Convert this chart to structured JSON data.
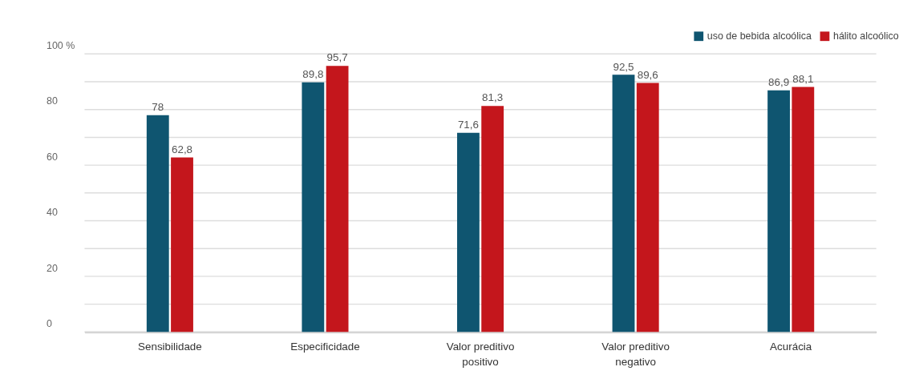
{
  "chart_data": {
    "type": "bar",
    "categories": [
      "Sensibilidade",
      "Especificidade",
      "Valor preditivo positivo",
      "Valor preditivo negativo",
      "Acurácia"
    ],
    "series": [
      {
        "name": "uso de bebida alcoólica",
        "color": "#0f5570",
        "values": [
          78,
          89.8,
          71.6,
          92.5,
          86.9
        ],
        "value_labels": [
          "78",
          "89,8",
          "71,6",
          "92,5",
          "86,9"
        ]
      },
      {
        "name": "hálito alcoólico",
        "color": "#c4161c",
        "values": [
          62.8,
          95.7,
          81.3,
          89.6,
          88.1
        ],
        "value_labels": [
          "62,8",
          "95,7",
          "81,3",
          "89,6",
          "88,1"
        ]
      }
    ],
    "ylim": [
      0,
      100
    ],
    "yticks": [
      0,
      {
        "value": 10,
        "label": null
      },
      20,
      {
        "value": 30,
        "label": null
      },
      40,
      {
        "value": 50,
        "label": null
      },
      60,
      {
        "value": 70,
        "label": null
      },
      80,
      {
        "value": 90,
        "label": null
      },
      {
        "value": 100,
        "label": "100 %"
      }
    ],
    "grid": "y",
    "legend": "top right"
  }
}
